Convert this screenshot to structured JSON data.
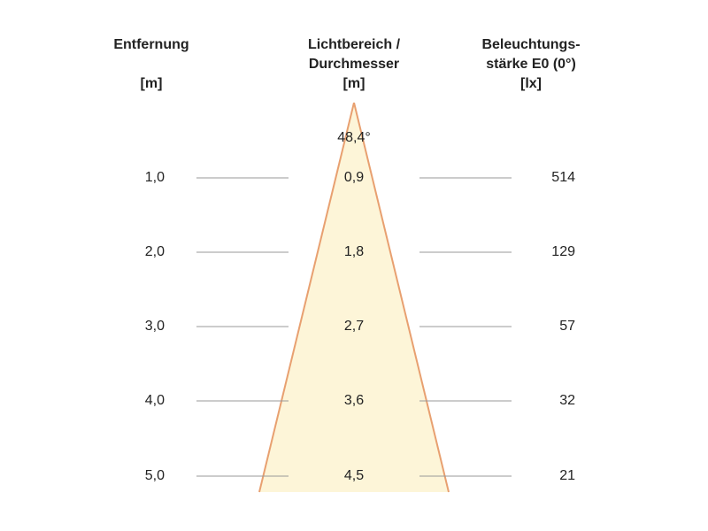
{
  "headers": {
    "distance": {
      "line1": "Entfernung",
      "line2": "",
      "unit": "[m]"
    },
    "diameter": {
      "line1": "Lichtbereich /",
      "line2": "Durchmesser",
      "unit": "[m]"
    },
    "illuminance": {
      "line1": "Beleuchtungs-",
      "line2": "stärke E0 (0°)",
      "unit": "[lx]"
    }
  },
  "beam_angle": "48,4°",
  "colors": {
    "cone_fill": "#fdf5d8",
    "cone_edge": "#e8a070",
    "leader_line": "#999999"
  },
  "rows": [
    {
      "distance": "1,0",
      "diameter": "0,9",
      "illuminance": "514"
    },
    {
      "distance": "2,0",
      "diameter": "1,8",
      "illuminance": "129"
    },
    {
      "distance": "3,0",
      "diameter": "2,7",
      "illuminance": "57"
    },
    {
      "distance": "4,0",
      "diameter": "3,6",
      "illuminance": "32"
    },
    {
      "distance": "5,0",
      "diameter": "4,5",
      "illuminance": "21"
    }
  ]
}
